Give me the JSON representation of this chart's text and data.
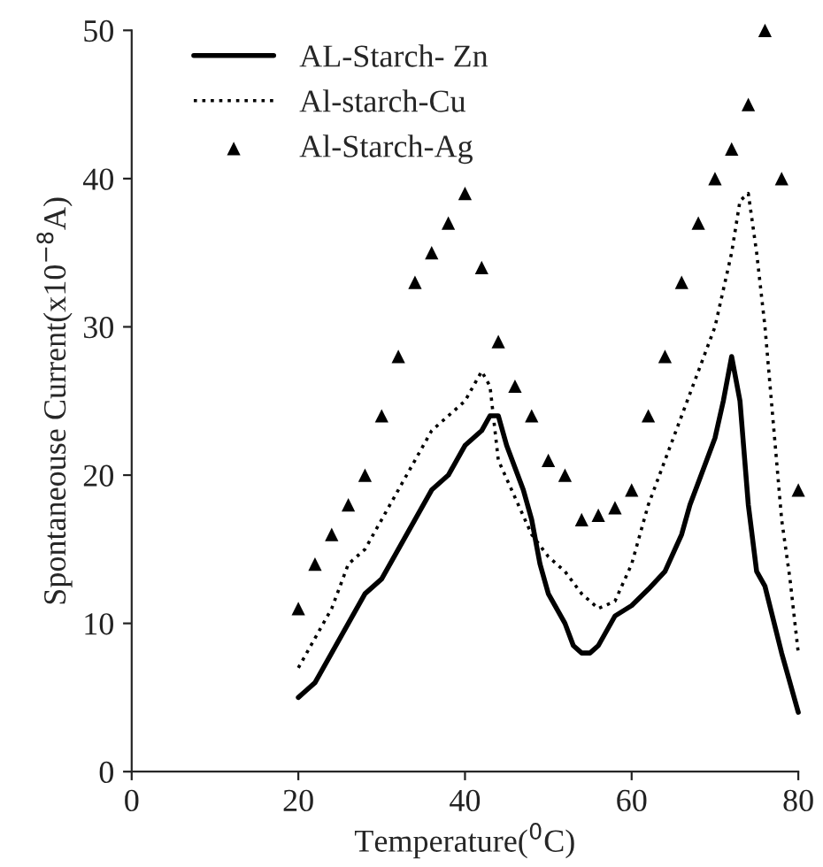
{
  "chart_data": {
    "type": "line",
    "xlabel": "Temperature($^{0}$C)",
    "ylabel": "Spontaneouse Current(x10$^{−8}$A)",
    "xlim": [
      0,
      80
    ],
    "ylim": [
      0,
      50
    ],
    "xticks": [
      0,
      20,
      40,
      60,
      80
    ],
    "yticks": [
      0,
      10,
      20,
      30,
      40,
      50
    ],
    "grid": false,
    "legend": "top left",
    "series": [
      {
        "name": "AL-Starch- Zn",
        "color": "#000000",
        "line_style": "solid",
        "marker": "none",
        "x": [
          20,
          21,
          22,
          24,
          26,
          28,
          30,
          32,
          34,
          36,
          38,
          40,
          42,
          43,
          44,
          45,
          47,
          48,
          49,
          50,
          52,
          53,
          54,
          55,
          56,
          57,
          58,
          60,
          62,
          64,
          66,
          67,
          68,
          70,
          71,
          72,
          73,
          74,
          75,
          76,
          78,
          80
        ],
        "values": [
          5,
          5.5,
          6,
          8,
          10,
          12,
          13,
          15,
          17,
          19,
          20,
          22,
          23,
          24,
          24,
          22,
          19,
          17,
          14,
          12,
          10,
          8.5,
          8,
          8,
          8.5,
          9.5,
          10.5,
          11.2,
          12.3,
          13.5,
          16,
          18,
          19.5,
          22.5,
          25,
          28,
          25,
          18,
          13.5,
          12.5,
          8,
          4
        ]
      },
      {
        "name": "Al-starch-Cu",
        "color": "#000000",
        "line_style": "dotted",
        "marker": "none",
        "x": [
          20,
          22,
          24,
          26,
          28,
          30,
          32,
          34,
          36,
          38,
          40,
          41,
          42,
          43,
          44,
          46,
          48,
          50,
          52,
          54,
          56,
          58,
          60,
          62,
          64,
          66,
          68,
          70,
          72,
          73,
          74,
          75,
          76,
          78,
          79,
          80
        ],
        "values": [
          7,
          9,
          11,
          14,
          15,
          17,
          19,
          21,
          23,
          24,
          25,
          26,
          27,
          26,
          21,
          18.5,
          16,
          14.5,
          13.5,
          12,
          11,
          11.5,
          14,
          18,
          21,
          24,
          27,
          30,
          35,
          38.5,
          39,
          35,
          30,
          17,
          13,
          8
        ]
      },
      {
        "name": "Al-Starch-Ag",
        "type": "scatter",
        "color": "#000000",
        "marker": "triangle",
        "x": [
          20,
          22,
          24,
          26,
          28,
          30,
          32,
          34,
          36,
          38,
          40,
          42,
          44,
          46,
          48,
          50,
          52,
          54,
          56,
          58,
          60,
          62,
          64,
          66,
          68,
          70,
          72,
          74,
          76,
          78,
          80
        ],
        "values": [
          11,
          14,
          16,
          18,
          20,
          24,
          28,
          33,
          35,
          37,
          39,
          34,
          29,
          26,
          24,
          21,
          20,
          17,
          17.3,
          17.8,
          19,
          24,
          28,
          33,
          37,
          40,
          42,
          45,
          50,
          40,
          19
        ]
      }
    ]
  }
}
